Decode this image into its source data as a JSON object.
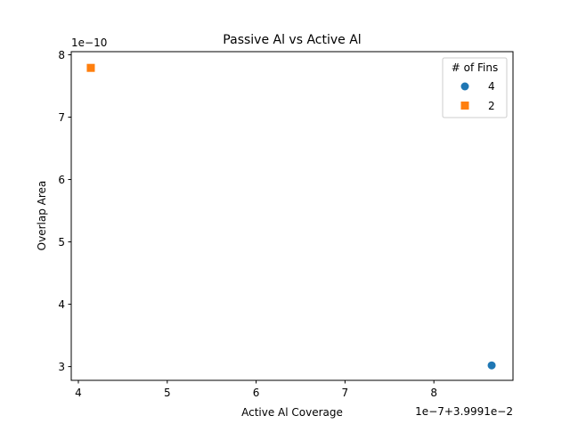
{
  "chart_data": {
    "type": "scatter",
    "title": "Passive Al vs Active Al",
    "xlabel": "Active Al Coverage",
    "ylabel": "Overlap Area",
    "x_offset_text": "1e−7+3.9991e−2",
    "y_offset_text": "1e−10",
    "xlim": [
      3.92,
      8.89
    ],
    "ylim": [
      2.78,
      8.05
    ],
    "x_ticks": [
      4,
      5,
      6,
      7,
      8
    ],
    "x_tick_labels": [
      "4",
      "5",
      "6",
      "7",
      "8"
    ],
    "y_ticks": [
      3,
      4,
      5,
      6,
      7,
      8
    ],
    "y_tick_labels": [
      "3",
      "4",
      "5",
      "6",
      "7",
      "8"
    ],
    "grid": false,
    "legend": {
      "title": "# of Fins",
      "placement": "top-right"
    },
    "series": [
      {
        "name": "4",
        "marker": "circle",
        "color": "#1f77b4",
        "points": [
          {
            "x": 8.65,
            "y": 3.02
          }
        ]
      },
      {
        "name": "2",
        "marker": "square",
        "color": "#ff7f0e",
        "points": [
          {
            "x": 4.14,
            "y": 7.79
          }
        ]
      }
    ]
  }
}
